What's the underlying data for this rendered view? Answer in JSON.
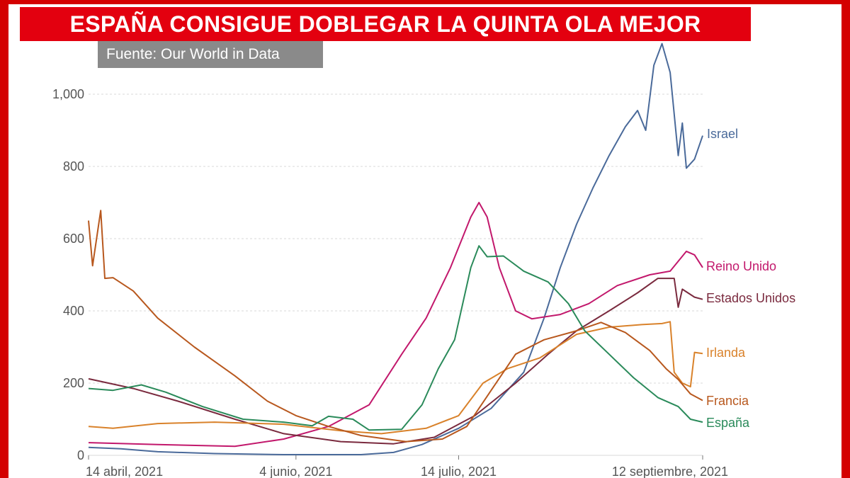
{
  "header": {
    "title": "ESPAÑA CONSIGUE DOBLEGAR LA QUINTA OLA MEJOR",
    "source": "Fuente: Our World in Data"
  },
  "colors": {
    "frame": "#d40000",
    "title_bg": "#e3000f",
    "source_bg": "#8a8a8a"
  },
  "chart_data": {
    "type": "line",
    "title": "ESPAÑA CONSIGUE DOBLEGAR LA QUINTA OLA MEJOR",
    "xlabel": "",
    "ylabel": "",
    "ylim": [
      0,
      1100
    ],
    "xlim": [
      "2021-04-14",
      "2021-09-12"
    ],
    "grid": true,
    "y_ticks": [
      {
        "value": 0,
        "label": "0"
      },
      {
        "value": 200,
        "label": "200"
      },
      {
        "value": 400,
        "label": "400"
      },
      {
        "value": 600,
        "label": "600"
      },
      {
        "value": 800,
        "label": "800"
      },
      {
        "value": 1000,
        "label": "1,000"
      }
    ],
    "x_ticks": [
      {
        "date": "2021-04-14",
        "label": "14 abril, 2021"
      },
      {
        "date": "2021-06-04",
        "label": "4 junio, 2021"
      },
      {
        "date": "2021-07-14",
        "label": "14 julio, 2021"
      },
      {
        "date": "2021-09-12",
        "label": "12 septiembre, 2021"
      }
    ],
    "series": [
      {
        "name": "Israel",
        "color": "#4a6a9a",
        "points": [
          [
            "2021-04-14",
            22
          ],
          [
            "2021-04-22",
            18
          ],
          [
            "2021-05-01",
            10
          ],
          [
            "2021-05-15",
            5
          ],
          [
            "2021-06-01",
            2
          ],
          [
            "2021-06-20",
            2
          ],
          [
            "2021-06-28",
            8
          ],
          [
            "2021-07-05",
            30
          ],
          [
            "2021-07-14",
            75
          ],
          [
            "2021-07-22",
            130
          ],
          [
            "2021-07-30",
            230
          ],
          [
            "2021-08-04",
            380
          ],
          [
            "2021-08-08",
            520
          ],
          [
            "2021-08-12",
            640
          ],
          [
            "2021-08-16",
            740
          ],
          [
            "2021-08-20",
            830
          ],
          [
            "2021-08-24",
            910
          ],
          [
            "2021-08-27",
            955
          ],
          [
            "2021-08-29",
            900
          ],
          [
            "2021-08-31",
            1080
          ],
          [
            "2021-09-02",
            1140
          ],
          [
            "2021-09-04",
            1060
          ],
          [
            "2021-09-06",
            830
          ],
          [
            "2021-09-07",
            920
          ],
          [
            "2021-09-08",
            795
          ],
          [
            "2021-09-10",
            820
          ],
          [
            "2021-09-12",
            885
          ]
        ]
      },
      {
        "name": "Reino Unido",
        "color": "#c2186c",
        "points": [
          [
            "2021-04-14",
            35
          ],
          [
            "2021-05-01",
            30
          ],
          [
            "2021-05-20",
            25
          ],
          [
            "2021-06-01",
            45
          ],
          [
            "2021-06-12",
            80
          ],
          [
            "2021-06-22",
            140
          ],
          [
            "2021-06-30",
            280
          ],
          [
            "2021-07-06",
            380
          ],
          [
            "2021-07-12",
            520
          ],
          [
            "2021-07-17",
            660
          ],
          [
            "2021-07-19",
            700
          ],
          [
            "2021-07-21",
            660
          ],
          [
            "2021-07-24",
            520
          ],
          [
            "2021-07-28",
            400
          ],
          [
            "2021-08-01",
            378
          ],
          [
            "2021-08-08",
            390
          ],
          [
            "2021-08-15",
            420
          ],
          [
            "2021-08-22",
            470
          ],
          [
            "2021-08-30",
            500
          ],
          [
            "2021-09-04",
            510
          ],
          [
            "2021-09-08",
            565
          ],
          [
            "2021-09-10",
            555
          ],
          [
            "2021-09-12",
            520
          ]
        ]
      },
      {
        "name": "Estados Unidos",
        "color": "#7a2a3e",
        "points": [
          [
            "2021-04-14",
            212
          ],
          [
            "2021-04-25",
            185
          ],
          [
            "2021-05-06",
            150
          ],
          [
            "2021-05-20",
            100
          ],
          [
            "2021-06-01",
            60
          ],
          [
            "2021-06-15",
            38
          ],
          [
            "2021-06-28",
            32
          ],
          [
            "2021-07-08",
            50
          ],
          [
            "2021-07-18",
            110
          ],
          [
            "2021-07-28",
            200
          ],
          [
            "2021-08-05",
            280
          ],
          [
            "2021-08-12",
            345
          ],
          [
            "2021-08-20",
            400
          ],
          [
            "2021-08-27",
            450
          ],
          [
            "2021-09-01",
            490
          ],
          [
            "2021-09-05",
            490
          ],
          [
            "2021-09-06",
            410
          ],
          [
            "2021-09-07",
            460
          ],
          [
            "2021-09-10",
            438
          ],
          [
            "2021-09-12",
            432
          ]
        ]
      },
      {
        "name": "Irlanda",
        "color": "#d9822b",
        "points": [
          [
            "2021-04-14",
            80
          ],
          [
            "2021-04-20",
            75
          ],
          [
            "2021-05-01",
            88
          ],
          [
            "2021-05-15",
            92
          ],
          [
            "2021-06-01",
            86
          ],
          [
            "2021-06-15",
            68
          ],
          [
            "2021-06-25",
            60
          ],
          [
            "2021-07-06",
            75
          ],
          [
            "2021-07-14",
            110
          ],
          [
            "2021-07-20",
            200
          ],
          [
            "2021-07-26",
            240
          ],
          [
            "2021-08-03",
            270
          ],
          [
            "2021-08-12",
            335
          ],
          [
            "2021-08-20",
            355
          ],
          [
            "2021-08-28",
            362
          ],
          [
            "2021-09-02",
            365
          ],
          [
            "2021-09-04",
            370
          ],
          [
            "2021-09-05",
            230
          ],
          [
            "2021-09-07",
            200
          ],
          [
            "2021-09-09",
            190
          ],
          [
            "2021-09-10",
            285
          ],
          [
            "2021-09-12",
            282
          ]
        ]
      },
      {
        "name": "Francia",
        "color": "#b8581e",
        "points": [
          [
            "2021-04-14",
            650
          ],
          [
            "2021-04-15",
            525
          ],
          [
            "2021-04-17",
            678
          ],
          [
            "2021-04-18",
            490
          ],
          [
            "2021-04-20",
            492
          ],
          [
            "2021-04-25",
            455
          ],
          [
            "2021-05-01",
            380
          ],
          [
            "2021-05-10",
            300
          ],
          [
            "2021-05-20",
            220
          ],
          [
            "2021-05-28",
            150
          ],
          [
            "2021-06-04",
            110
          ],
          [
            "2021-06-12",
            80
          ],
          [
            "2021-06-20",
            55
          ],
          [
            "2021-07-01",
            38
          ],
          [
            "2021-07-10",
            45
          ],
          [
            "2021-07-16",
            80
          ],
          [
            "2021-07-22",
            180
          ],
          [
            "2021-07-28",
            280
          ],
          [
            "2021-08-04",
            320
          ],
          [
            "2021-08-12",
            345
          ],
          [
            "2021-08-18",
            368
          ],
          [
            "2021-08-24",
            340
          ],
          [
            "2021-08-30",
            290
          ],
          [
            "2021-09-03",
            240
          ],
          [
            "2021-09-06",
            210
          ],
          [
            "2021-09-09",
            170
          ],
          [
            "2021-09-12",
            152
          ]
        ]
      },
      {
        "name": "España",
        "color": "#2a8a5a",
        "points": [
          [
            "2021-04-14",
            185
          ],
          [
            "2021-04-20",
            180
          ],
          [
            "2021-04-27",
            195
          ],
          [
            "2021-05-03",
            175
          ],
          [
            "2021-05-12",
            135
          ],
          [
            "2021-05-22",
            100
          ],
          [
            "2021-06-01",
            92
          ],
          [
            "2021-06-08",
            82
          ],
          [
            "2021-06-12",
            108
          ],
          [
            "2021-06-18",
            100
          ],
          [
            "2021-06-22",
            70
          ],
          [
            "2021-06-30",
            72
          ],
          [
            "2021-07-05",
            140
          ],
          [
            "2021-07-09",
            240
          ],
          [
            "2021-07-13",
            320
          ],
          [
            "2021-07-17",
            520
          ],
          [
            "2021-07-19",
            580
          ],
          [
            "2021-07-21",
            550
          ],
          [
            "2021-07-25",
            552
          ],
          [
            "2021-07-30",
            510
          ],
          [
            "2021-08-05",
            480
          ],
          [
            "2021-08-10",
            420
          ],
          [
            "2021-08-14",
            345
          ],
          [
            "2021-08-20",
            280
          ],
          [
            "2021-08-26",
            215
          ],
          [
            "2021-09-01",
            160
          ],
          [
            "2021-09-06",
            135
          ],
          [
            "2021-09-09",
            100
          ],
          [
            "2021-09-12",
            92
          ]
        ]
      }
    ]
  }
}
